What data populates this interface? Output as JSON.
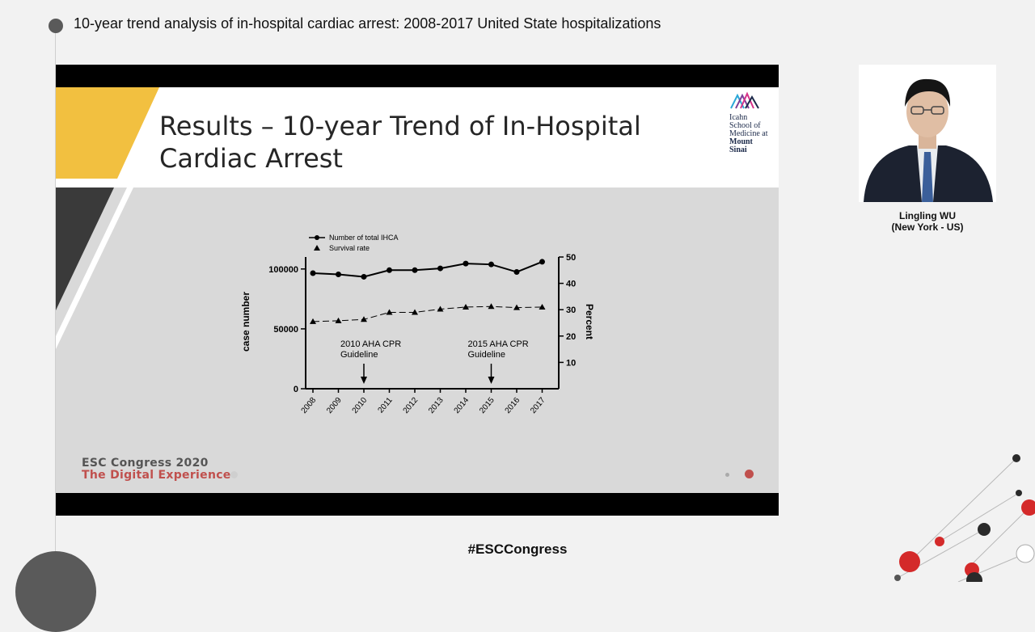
{
  "header": {
    "title": "10-year trend analysis of in-hospital cardiac arrest: 2008-2017 United State hospitalizations"
  },
  "slide": {
    "title_line1": "Results – 10-year Trend of In-Hospital",
    "title_line2": "Cardiac Arrest",
    "logo": {
      "line1": "Icahn",
      "line2": "School of",
      "line3": "Medicine at",
      "line4": "Mount",
      "line5": "Sinai"
    },
    "footer": {
      "line1": "ESC Congress 2020",
      "line2": "The Digital Experience"
    }
  },
  "speaker": {
    "name": "Lingling WU",
    "location": "(New York - US)"
  },
  "hashtag": "#ESCCongress",
  "colors": {
    "accent_yellow": "#f2c040",
    "esc_red": "#c0504d",
    "dark_shape": "#3a3a3a"
  },
  "chart_data": {
    "type": "line",
    "x": [
      "2008",
      "2009",
      "2010",
      "2011",
      "2012",
      "2013",
      "2014",
      "2015",
      "2016",
      "2017"
    ],
    "series": [
      {
        "name": "Number of total IHCA",
        "axis": "left",
        "marker": "circle",
        "style": "solid",
        "values": [
          96500,
          95500,
          93500,
          99000,
          99000,
          100500,
          104500,
          103800,
          97500,
          106000
        ]
      },
      {
        "name": "Survival rate",
        "axis": "right",
        "marker": "triangle",
        "style": "dashed",
        "values": [
          25.5,
          25.8,
          26.3,
          29.0,
          29.0,
          30.2,
          31.0,
          31.2,
          30.8,
          31.0
        ]
      }
    ],
    "ylabel": "case number",
    "y2label": "Percent",
    "ylim": [
      0,
      110000
    ],
    "yticks": [
      "0",
      "50000",
      "100000"
    ],
    "y2lim": [
      0,
      50
    ],
    "y2ticks": [
      "10",
      "20",
      "30",
      "40",
      "50"
    ],
    "annotations": [
      {
        "line1": "2010 AHA CPR",
        "line2": "Guideline",
        "x": "2010"
      },
      {
        "line1": "2015 AHA CPR",
        "line2": "Guideline",
        "x": "2015"
      }
    ],
    "legend": "top-left"
  }
}
